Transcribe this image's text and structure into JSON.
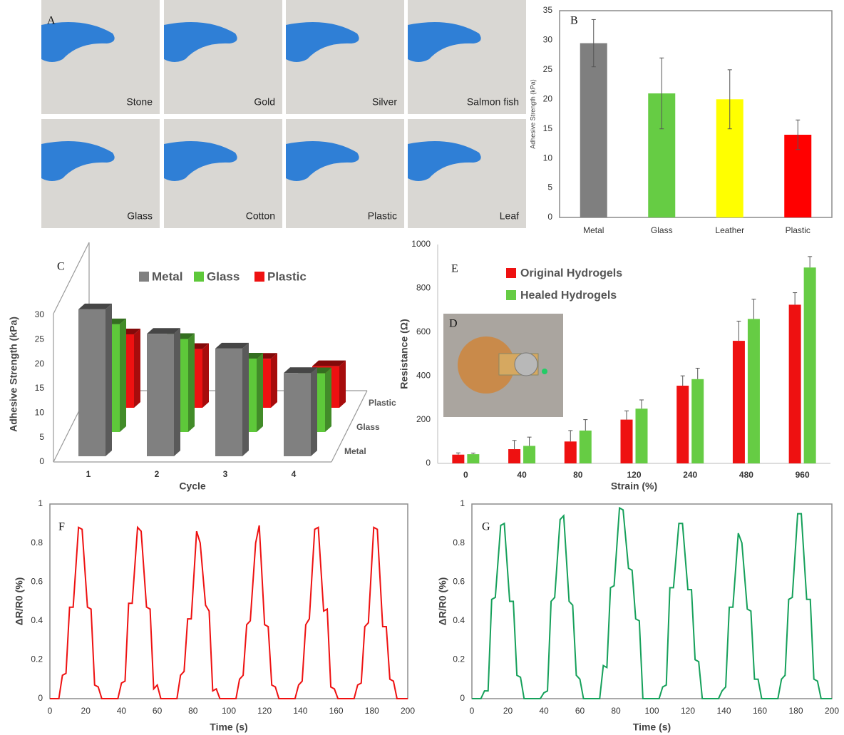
{
  "photo_panel": {
    "label": "A",
    "photos": [
      "Stone",
      "Gold",
      "Silver",
      "Salmon fish",
      "Glass",
      "Cotton",
      "Plastic",
      "Leaf"
    ]
  },
  "chart_data": [
    {
      "type": "bar",
      "panel_label": "B",
      "y_label": "Adhesive Strength (kPa)",
      "categories": [
        "Metal",
        "Glass",
        "Leather",
        "Plastic"
      ],
      "series": [
        {
          "values": [
            29.5,
            21,
            20,
            14
          ],
          "errors": [
            4,
            6,
            5,
            2.5
          ],
          "colors": [
            "#7f7f7f",
            "#66cc44",
            "#ffff00",
            "#ff0000"
          ]
        }
      ],
      "ylim": [
        0,
        35
      ],
      "yticks": [
        0,
        5,
        10,
        15,
        20,
        25,
        30,
        35
      ]
    },
    {
      "type": "bar3d",
      "panel_label": "C",
      "x_label": "Cycle",
      "y_label": "Adhesive Strength (kPa)",
      "categories": [
        "1",
        "2",
        "3",
        "4"
      ],
      "series": [
        {
          "name": "Metal",
          "color": "#808080",
          "values": [
            30,
            25,
            22,
            17
          ]
        },
        {
          "name": "Glass",
          "color": "#5ec83a",
          "values": [
            22,
            19,
            15,
            12
          ]
        },
        {
          "name": "Plastic",
          "color": "#ee1111",
          "values": [
            15,
            12,
            10,
            8.5
          ]
        }
      ],
      "ylim": [
        0,
        30
      ],
      "yticks": [
        0,
        5,
        10,
        15,
        20,
        25,
        30
      ]
    },
    {
      "type": "bar",
      "panel_label": "E",
      "inset_label": "D",
      "x_label": "Strain (%)",
      "y_label": "Resistance (Ω)",
      "categories": [
        "0",
        "40",
        "80",
        "120",
        "240",
        "480",
        "960"
      ],
      "series": [
        {
          "name": "Original Hydrogels",
          "color": "#ee1111",
          "values": [
            40,
            65,
            100,
            200,
            355,
            560,
            725
          ],
          "errors": [
            8,
            40,
            50,
            40,
            45,
            90,
            55
          ]
        },
        {
          "name": "Healed Hydrogels",
          "color": "#66cc44",
          "values": [
            42,
            80,
            150,
            250,
            385,
            660,
            895
          ],
          "errors": [
            5,
            40,
            50,
            40,
            50,
            90,
            50
          ]
        }
      ],
      "ylim": [
        0,
        1000
      ],
      "yticks": [
        0,
        200,
        400,
        600,
        800,
        1000
      ]
    },
    {
      "type": "line",
      "panel_label": "F",
      "x_label": "Time (s)",
      "y_label": "ΔR/R0 (%)",
      "color": "#ee1111",
      "x": [
        0,
        5,
        7,
        9,
        11,
        13,
        16,
        18,
        21,
        23,
        25,
        27,
        29,
        38,
        40,
        42,
        44,
        46,
        49,
        51,
        54,
        56,
        58,
        60,
        62,
        71,
        73,
        75,
        77,
        79,
        82,
        84,
        87,
        89,
        91,
        93,
        95,
        104,
        106,
        108,
        110,
        112,
        115,
        117,
        120,
        122,
        124,
        126,
        128,
        137,
        139,
        141,
        143,
        145,
        148,
        150,
        153,
        155,
        157,
        159,
        161,
        170,
        172,
        174,
        176,
        178,
        181,
        183,
        186,
        188,
        190,
        192,
        194,
        200
      ],
      "values": [
        0,
        0,
        0.12,
        0.13,
        0.47,
        0.47,
        0.88,
        0.87,
        0.47,
        0.46,
        0.07,
        0.06,
        0,
        0,
        0.08,
        0.09,
        0.49,
        0.49,
        0.88,
        0.86,
        0.47,
        0.46,
        0.05,
        0.07,
        0,
        0,
        0.12,
        0.14,
        0.41,
        0.41,
        0.86,
        0.8,
        0.48,
        0.45,
        0.04,
        0.05,
        0,
        0,
        0.1,
        0.12,
        0.38,
        0.4,
        0.8,
        0.89,
        0.38,
        0.37,
        0.07,
        0.06,
        0,
        0,
        0.07,
        0.09,
        0.38,
        0.41,
        0.87,
        0.88,
        0.45,
        0.46,
        0.06,
        0.05,
        0,
        0,
        0.07,
        0.08,
        0.37,
        0.39,
        0.88,
        0.87,
        0.37,
        0.37,
        0.1,
        0.09,
        0,
        0
      ],
      "xlim": [
        0,
        200
      ],
      "xticks": [
        0,
        20,
        40,
        60,
        80,
        100,
        120,
        140,
        160,
        180,
        200
      ],
      "ylim": [
        0,
        1
      ],
      "yticks": [
        0,
        0.2,
        0.4,
        0.6,
        0.8,
        1
      ]
    },
    {
      "type": "line",
      "panel_label": "G",
      "x_label": "Time (s)",
      "y_label": "ΔR/R0 (%)",
      "color": "#15a05a",
      "x": [
        0,
        5,
        7,
        9,
        11,
        13,
        16,
        18,
        21,
        23,
        25,
        27,
        29,
        38,
        40,
        42,
        44,
        46,
        49,
        51,
        54,
        56,
        58,
        60,
        62,
        71,
        73,
        75,
        77,
        79,
        82,
        84,
        87,
        89,
        91,
        93,
        95,
        104,
        106,
        108,
        110,
        112,
        115,
        117,
        120,
        122,
        124,
        126,
        128,
        137,
        139,
        141,
        143,
        145,
        148,
        150,
        153,
        155,
        157,
        159,
        161,
        170,
        172,
        174,
        176,
        178,
        181,
        183,
        186,
        188,
        190,
        192,
        194,
        200
      ],
      "values": [
        0,
        0,
        0.04,
        0.04,
        0.51,
        0.52,
        0.89,
        0.9,
        0.5,
        0.5,
        0.12,
        0.11,
        0,
        0,
        0.03,
        0.04,
        0.5,
        0.52,
        0.92,
        0.94,
        0.5,
        0.48,
        0.12,
        0.1,
        0,
        0,
        0.17,
        0.16,
        0.57,
        0.58,
        0.98,
        0.97,
        0.67,
        0.66,
        0.41,
        0.4,
        0,
        0,
        0.06,
        0.07,
        0.57,
        0.57,
        0.9,
        0.9,
        0.56,
        0.56,
        0.2,
        0.19,
        0,
        0,
        0.04,
        0.06,
        0.47,
        0.47,
        0.85,
        0.8,
        0.46,
        0.45,
        0.1,
        0.1,
        0,
        0,
        0.1,
        0.12,
        0.51,
        0.52,
        0.95,
        0.95,
        0.51,
        0.51,
        0.1,
        0.09,
        0,
        0
      ],
      "xlim": [
        0,
        200
      ],
      "xticks": [
        0,
        20,
        40,
        60,
        80,
        100,
        120,
        140,
        160,
        180,
        200
      ],
      "ylim": [
        0,
        1
      ],
      "yticks": [
        0,
        0.2,
        0.4,
        0.6,
        0.8,
        1
      ]
    }
  ]
}
